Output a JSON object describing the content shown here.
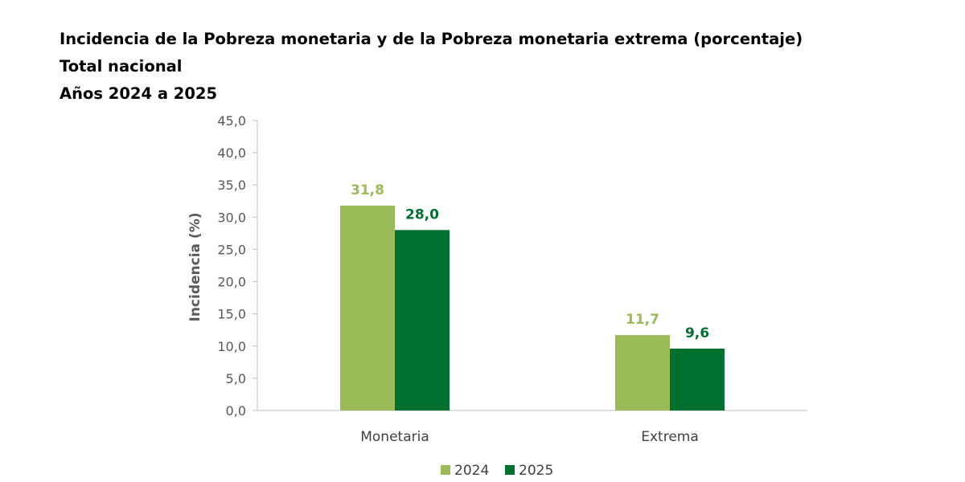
{
  "chart_data": {
    "type": "bar",
    "title_lines": [
      "Incidencia de la Pobreza monetaria y de la Pobreza monetaria extrema (porcentaje)",
      "Total nacional",
      "Años 2024 a 2025"
    ],
    "xlabel": "",
    "ylabel": "Incidencia (%)",
    "categories": [
      "Monetaria",
      "Extrema"
    ],
    "series": [
      {
        "name": "2024",
        "values": [
          31.8,
          11.7
        ],
        "labels": [
          "31,8",
          "11,7"
        ],
        "color": "#9bbb59"
      },
      {
        "name": "2025",
        "values": [
          28.0,
          9.6
        ],
        "labels": [
          "28,0",
          "9,6"
        ],
        "color": "#00702f"
      }
    ],
    "ylim": [
      0,
      45
    ],
    "yticks": [
      {
        "value": 0,
        "label": "0,0"
      },
      {
        "value": 5,
        "label": "5,0"
      },
      {
        "value": 10,
        "label": "10,0"
      },
      {
        "value": 15,
        "label": "15,0"
      },
      {
        "value": 20,
        "label": "20,0"
      },
      {
        "value": 25,
        "label": "25,0"
      },
      {
        "value": 30,
        "label": "30,0"
      },
      {
        "value": 35,
        "label": "35,0"
      },
      {
        "value": 40,
        "label": "40,0"
      },
      {
        "value": 45,
        "label": "45,0"
      }
    ],
    "grid": false,
    "legend_position": "bottom-center",
    "axis_color": "#bfbfbf"
  }
}
